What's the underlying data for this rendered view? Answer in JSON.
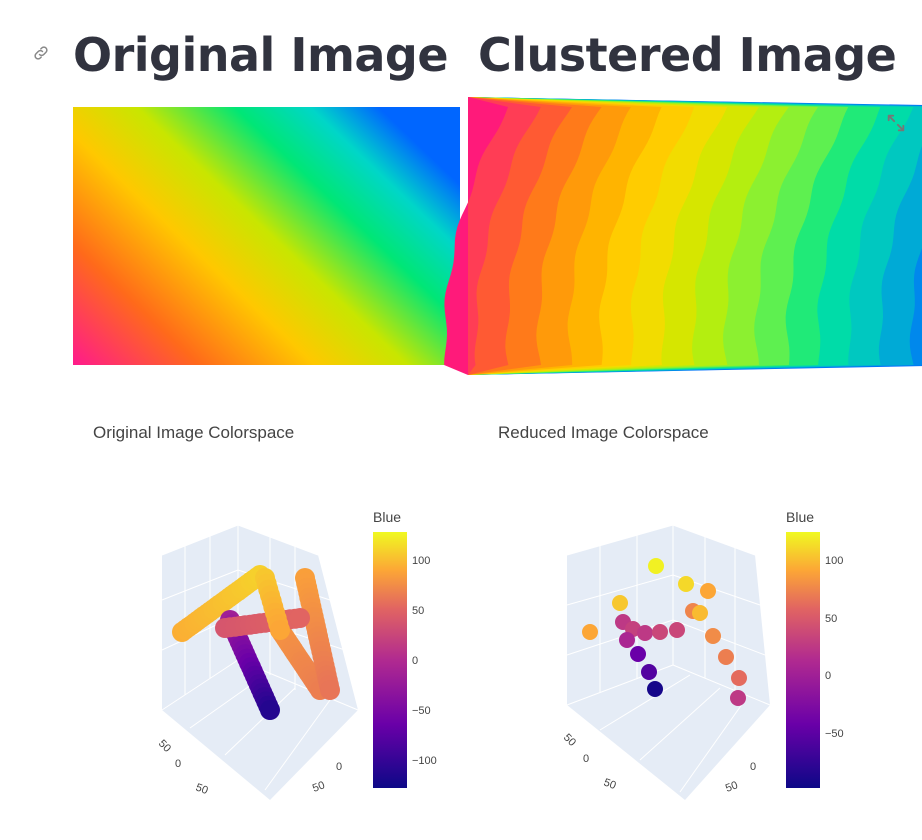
{
  "headings": {
    "left": "Original Image",
    "right": "Clustered Image"
  },
  "plots": {
    "left": {
      "title": "Original Image Colorspace",
      "colorbar_title": "Blue",
      "colorbar_ticks": [
        "100",
        "50",
        "0",
        "−50",
        "−100"
      ],
      "axis_ticks": [
        "50",
        "0",
        "50",
        "0",
        "50"
      ]
    },
    "right": {
      "title": "Reduced Image Colorspace",
      "colorbar_title": "Blue",
      "colorbar_ticks": [
        "100",
        "50",
        "0",
        "−50"
      ],
      "axis_ticks": [
        "50",
        "0",
        "50",
        "0",
        "50"
      ]
    }
  },
  "icons": {
    "link": "link-icon",
    "expand": "fullscreen-icon"
  },
  "colors": {
    "text": "#31333F",
    "plot_bg": "#E5ECF6",
    "colorscale": [
      "#0d0887",
      "#6a00a8",
      "#b12a90",
      "#e16462",
      "#fca636",
      "#f0f921"
    ]
  }
}
